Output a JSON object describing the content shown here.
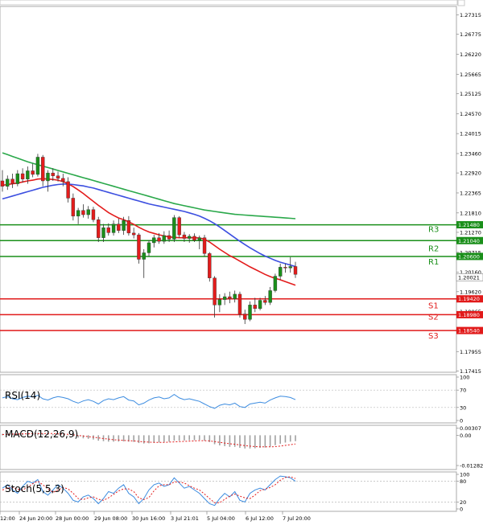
{
  "chart_data": [
    {
      "type": "candlestick",
      "panel": "price",
      "instrument_note": "",
      "price_axis_labels": [
        "1.27315",
        "1.26775",
        "1.26220",
        "1.25665",
        "1.25125",
        "1.24570",
        "1.24015",
        "1.23460",
        "1.22920",
        "1.22365",
        "1.21810",
        "1.21270",
        "1.20715",
        "1.20160",
        "1.19620",
        "1.19065",
        "1.18525",
        "1.17955",
        "1.17415"
      ],
      "ylim": [
        1.1738,
        1.2755
      ],
      "current_price": "1.20021",
      "levels": [
        {
          "name": "R3",
          "value": 1.2148,
          "label": "1.21480",
          "color": "#1a8f1a"
        },
        {
          "name": "R2",
          "value": 1.2104,
          "label": "1.21040",
          "color": "#1a8f1a"
        },
        {
          "name": "R1",
          "value": 1.206,
          "label": "1.20600",
          "color": "#1a8f1a"
        },
        {
          "name": "S1",
          "value": 1.1942,
          "label": "1.19420",
          "color": "#e11a1a"
        },
        {
          "name": "S2",
          "value": 1.1898,
          "label": "1.18980",
          "color": "#e11a1a"
        },
        {
          "name": "S3",
          "value": 1.1854,
          "label": "1.18540",
          "color": "#e11a1a"
        }
      ],
      "level_tags": [
        "R3",
        "R2",
        "R1",
        "S1",
        "S2",
        "S3"
      ],
      "time_labels": [
        "12:00",
        "24 Jun 20:00",
        "28 Jun 00:00",
        "29 Jun 08:00",
        "30 Jun 16:00",
        "3 Jul 21:01",
        "5 Jul 04:00",
        "6 Jul 12:00",
        "7 Jul 20:00"
      ],
      "candles": [
        {
          "o": 1.227,
          "h": 1.23,
          "l": 1.224,
          "c": 1.2255
        },
        {
          "o": 1.2255,
          "h": 1.2285,
          "l": 1.2245,
          "c": 1.2275
        },
        {
          "o": 1.2275,
          "h": 1.229,
          "l": 1.225,
          "c": 1.2262
        },
        {
          "o": 1.2262,
          "h": 1.23,
          "l": 1.2255,
          "c": 1.229
        },
        {
          "o": 1.229,
          "h": 1.2305,
          "l": 1.2265,
          "c": 1.2275
        },
        {
          "o": 1.2275,
          "h": 1.231,
          "l": 1.2262,
          "c": 1.2298
        },
        {
          "o": 1.2298,
          "h": 1.2318,
          "l": 1.228,
          "c": 1.2288
        },
        {
          "o": 1.2288,
          "h": 1.2345,
          "l": 1.2282,
          "c": 1.2336
        },
        {
          "o": 1.2336,
          "h": 1.2342,
          "l": 1.2255,
          "c": 1.227
        },
        {
          "o": 1.227,
          "h": 1.23,
          "l": 1.224,
          "c": 1.2292
        },
        {
          "o": 1.2292,
          "h": 1.2305,
          "l": 1.227,
          "c": 1.2284
        },
        {
          "o": 1.2284,
          "h": 1.2296,
          "l": 1.2268,
          "c": 1.2277
        },
        {
          "o": 1.2277,
          "h": 1.229,
          "l": 1.2255,
          "c": 1.2268
        },
        {
          "o": 1.2268,
          "h": 1.228,
          "l": 1.221,
          "c": 1.2222
        },
        {
          "o": 1.2222,
          "h": 1.2235,
          "l": 1.216,
          "c": 1.2172
        },
        {
          "o": 1.2172,
          "h": 1.2195,
          "l": 1.215,
          "c": 1.2188
        },
        {
          "o": 1.2188,
          "h": 1.2205,
          "l": 1.2168,
          "c": 1.2176
        },
        {
          "o": 1.2176,
          "h": 1.22,
          "l": 1.2165,
          "c": 1.219
        },
        {
          "o": 1.219,
          "h": 1.2198,
          "l": 1.2155,
          "c": 1.2162
        },
        {
          "o": 1.2162,
          "h": 1.217,
          "l": 1.21,
          "c": 1.2112
        },
        {
          "o": 1.2112,
          "h": 1.215,
          "l": 1.21,
          "c": 1.214
        },
        {
          "o": 1.214,
          "h": 1.2152,
          "l": 1.2118,
          "c": 1.2126
        },
        {
          "o": 1.2126,
          "h": 1.216,
          "l": 1.2118,
          "c": 1.215
        },
        {
          "o": 1.215,
          "h": 1.2165,
          "l": 1.2125,
          "c": 1.2132
        },
        {
          "o": 1.2132,
          "h": 1.217,
          "l": 1.212,
          "c": 1.216
        },
        {
          "o": 1.216,
          "h": 1.2172,
          "l": 1.2118,
          "c": 1.2125
        },
        {
          "o": 1.2125,
          "h": 1.214,
          "l": 1.211,
          "c": 1.212
        },
        {
          "o": 1.212,
          "h": 1.2125,
          "l": 1.204,
          "c": 1.2052
        },
        {
          "o": 1.2052,
          "h": 1.208,
          "l": 1.2,
          "c": 1.207
        },
        {
          "o": 1.207,
          "h": 1.2105,
          "l": 1.206,
          "c": 1.2098
        },
        {
          "o": 1.2098,
          "h": 1.212,
          "l": 1.2085,
          "c": 1.2112
        },
        {
          "o": 1.2112,
          "h": 1.2125,
          "l": 1.2095,
          "c": 1.2102
        },
        {
          "o": 1.2102,
          "h": 1.213,
          "l": 1.2095,
          "c": 1.2118
        },
        {
          "o": 1.2118,
          "h": 1.2132,
          "l": 1.21,
          "c": 1.2108
        },
        {
          "o": 1.2108,
          "h": 1.2175,
          "l": 1.21,
          "c": 1.2168
        },
        {
          "o": 1.2168,
          "h": 1.2172,
          "l": 1.2112,
          "c": 1.212
        },
        {
          "o": 1.212,
          "h": 1.2128,
          "l": 1.21,
          "c": 1.211
        },
        {
          "o": 1.211,
          "h": 1.2122,
          "l": 1.2098,
          "c": 1.2116
        },
        {
          "o": 1.2116,
          "h": 1.2124,
          "l": 1.21,
          "c": 1.2105
        },
        {
          "o": 1.2105,
          "h": 1.2118,
          "l": 1.208,
          "c": 1.2112
        },
        {
          "o": 1.2112,
          "h": 1.212,
          "l": 1.206,
          "c": 1.2068
        },
        {
          "o": 1.2068,
          "h": 1.2072,
          "l": 1.199,
          "c": 1.2
        },
        {
          "o": 1.2,
          "h": 1.2005,
          "l": 1.189,
          "c": 1.1925
        },
        {
          "o": 1.1925,
          "h": 1.1955,
          "l": 1.1905,
          "c": 1.194
        },
        {
          "o": 1.194,
          "h": 1.1958,
          "l": 1.1925,
          "c": 1.1948
        },
        {
          "o": 1.1948,
          "h": 1.1962,
          "l": 1.193,
          "c": 1.1942
        },
        {
          "o": 1.1942,
          "h": 1.1965,
          "l": 1.1932,
          "c": 1.1955
        },
        {
          "o": 1.1955,
          "h": 1.1962,
          "l": 1.189,
          "c": 1.19
        },
        {
          "o": 1.19,
          "h": 1.1912,
          "l": 1.1872,
          "c": 1.1885
        },
        {
          "o": 1.1885,
          "h": 1.1935,
          "l": 1.188,
          "c": 1.1925
        },
        {
          "o": 1.1925,
          "h": 1.1945,
          "l": 1.1905,
          "c": 1.1915
        },
        {
          "o": 1.1915,
          "h": 1.1945,
          "l": 1.191,
          "c": 1.1938
        },
        {
          "o": 1.1938,
          "h": 1.195,
          "l": 1.1925,
          "c": 1.1932
        },
        {
          "o": 1.1932,
          "h": 1.1975,
          "l": 1.1925,
          "c": 1.1965
        },
        {
          "o": 1.1965,
          "h": 1.2012,
          "l": 1.196,
          "c": 1.2005
        },
        {
          "o": 1.2005,
          "h": 1.204,
          "l": 1.1995,
          "c": 1.203
        },
        {
          "o": 1.203,
          "h": 1.204,
          "l": 1.2015,
          "c": 1.2028
        },
        {
          "o": 1.2028,
          "h": 1.2058,
          "l": 1.2015,
          "c": 1.2032
        },
        {
          "o": 1.2032,
          "h": 1.2045,
          "l": 1.2,
          "c": 1.201
        }
      ],
      "moving_averages": [
        {
          "name": "MA fast",
          "color": "#e31c1c",
          "values": [
            1.2258,
            1.226,
            1.2262,
            1.2264,
            1.2267,
            1.227,
            1.2272,
            1.2275,
            1.2276,
            1.2275,
            1.2274,
            1.2272,
            1.2268,
            1.2262,
            1.2254,
            1.2245,
            1.2235,
            1.2224,
            1.2213,
            1.2202,
            1.2192,
            1.2182,
            1.2174,
            1.2167,
            1.2162,
            1.2156,
            1.2149,
            1.2141,
            1.2134,
            1.2128,
            1.2124,
            1.212,
            1.2117,
            1.2114,
            1.2113,
            1.2112,
            1.2112,
            1.2112,
            1.2112,
            1.2111,
            1.2108,
            1.21,
            1.209,
            1.208,
            1.2071,
            1.2062,
            1.2055,
            1.2047,
            1.2039,
            1.2031,
            1.2024,
            1.2017,
            1.201,
            1.2004,
            1.1999,
            1.1995,
            1.199,
            1.1985,
            1.198
          ]
        },
        {
          "name": "MA mid",
          "color": "#3c4fe0",
          "values": [
            1.222,
            1.2224,
            1.2228,
            1.2232,
            1.2236,
            1.224,
            1.2244,
            1.2248,
            1.2252,
            1.2255,
            1.2258,
            1.226,
            1.2261,
            1.2261,
            1.226,
            1.2258,
            1.2256,
            1.2253,
            1.225,
            1.2246,
            1.2242,
            1.2238,
            1.2234,
            1.223,
            1.2226,
            1.2222,
            1.2218,
            1.2214,
            1.221,
            1.2206,
            1.2203,
            1.22,
            1.2197,
            1.2194,
            1.2191,
            1.2188,
            1.2185,
            1.2181,
            1.2177,
            1.2172,
            1.2166,
            1.2159,
            1.2151,
            1.2142,
            1.2132,
            1.2122,
            1.2112,
            1.2102,
            1.2093,
            1.2084,
            1.2076,
            1.2068,
            1.2061,
            1.2055,
            1.2049,
            1.2044,
            1.204,
            1.2036,
            1.2032
          ]
        },
        {
          "name": "MA slow",
          "color": "#2aa84a",
          "values": [
            1.2348,
            1.2343,
            1.2338,
            1.2333,
            1.2328,
            1.2323,
            1.2319,
            1.2315,
            1.2311,
            1.2307,
            1.2303,
            1.2299,
            1.2295,
            1.2291,
            1.2287,
            1.2283,
            1.2279,
            1.2275,
            1.2271,
            1.2267,
            1.2263,
            1.2259,
            1.2255,
            1.2251,
            1.2247,
            1.2243,
            1.2239,
            1.2235,
            1.2231,
            1.2227,
            1.2223,
            1.2219,
            1.2215,
            1.2211,
            1.2207,
            1.2204,
            1.2201,
            1.2198,
            1.2195,
            1.2192,
            1.2189,
            1.2187,
            1.2185,
            1.2183,
            1.2181,
            1.2179,
            1.2177,
            1.2176,
            1.2175,
            1.2174,
            1.2173,
            1.2172,
            1.2171,
            1.217,
            1.2169,
            1.2168,
            1.2167,
            1.2166,
            1.2165
          ]
        }
      ]
    },
    {
      "type": "line",
      "panel": "rsi",
      "title": "RSI(14)",
      "ylim": [
        0,
        100
      ],
      "axis_labels": [
        "100",
        "70",
        "30",
        "0"
      ],
      "guide_levels": [
        70,
        30
      ],
      "series": [
        {
          "name": "RSI",
          "color": "#3c8ce0",
          "values": [
            52,
            55,
            50,
            48,
            53,
            56,
            54,
            58,
            50,
            47,
            52,
            55,
            53,
            50,
            44,
            40,
            45,
            48,
            44,
            38,
            46,
            50,
            48,
            52,
            55,
            47,
            45,
            36,
            40,
            47,
            52,
            54,
            50,
            52,
            60,
            52,
            48,
            50,
            47,
            44,
            38,
            32,
            28,
            35,
            38,
            36,
            40,
            32,
            30,
            38,
            40,
            42,
            40,
            47,
            52,
            56,
            55,
            53,
            48
          ]
        }
      ]
    },
    {
      "type": "histogram",
      "panel": "macd",
      "title": "MACD(12,26,9)",
      "ylim": [
        -0.0135,
        0.0032
      ],
      "axis_labels": [
        "0.00307",
        "0.00",
        "-0.012821"
      ],
      "series": [
        {
          "name": "MACD",
          "kind": "bars",
          "color": "#a0a0a0",
          "values": [
            0.0006,
            0.0007,
            0.0007,
            0.0008,
            0.0008,
            0.0009,
            0.0009,
            0.001,
            0.0008,
            0.0006,
            0.0005,
            0.0004,
            0.0002,
            -0.0001,
            -0.0006,
            -0.001,
            -0.0013,
            -0.0015,
            -0.0018,
            -0.0023,
            -0.0025,
            -0.0027,
            -0.0027,
            -0.0027,
            -0.0026,
            -0.0027,
            -0.0028,
            -0.0033,
            -0.0035,
            -0.0034,
            -0.0032,
            -0.003,
            -0.0028,
            -0.0027,
            -0.0023,
            -0.0023,
            -0.0022,
            -0.0021,
            -0.0021,
            -0.002,
            -0.0023,
            -0.0029,
            -0.0038,
            -0.0043,
            -0.0046,
            -0.0049,
            -0.0049,
            -0.0053,
            -0.0056,
            -0.0056,
            -0.0055,
            -0.0053,
            -0.0052,
            -0.0048,
            -0.0042,
            -0.0036,
            -0.0031,
            -0.0027,
            -0.0025
          ]
        },
        {
          "name": "Signal",
          "kind": "dotted",
          "color": "#e31c1c",
          "values": [
            0.0003,
            0.0004,
            0.0005,
            0.0005,
            0.0006,
            0.0006,
            0.0007,
            0.0007,
            0.0007,
            0.0007,
            0.0007,
            0.0006,
            0.0005,
            0.0004,
            0.0002,
            -0.0001,
            -0.0003,
            -0.0006,
            -0.0008,
            -0.0011,
            -0.0014,
            -0.0016,
            -0.0019,
            -0.002,
            -0.0022,
            -0.0023,
            -0.0024,
            -0.0026,
            -0.0028,
            -0.0029,
            -0.003,
            -0.003,
            -0.003,
            -0.0029,
            -0.0028,
            -0.0027,
            -0.0026,
            -0.0025,
            -0.0024,
            -0.0023,
            -0.0023,
            -0.0024,
            -0.0027,
            -0.003,
            -0.0033,
            -0.0036,
            -0.0038,
            -0.0041,
            -0.0044,
            -0.0046,
            -0.0048,
            -0.0049,
            -0.0049,
            -0.0049,
            -0.0048,
            -0.0046,
            -0.0043,
            -0.004,
            -0.0037
          ]
        }
      ]
    },
    {
      "type": "line",
      "panel": "stochastic",
      "title": "Stoch(5,5,3)",
      "ylim": [
        0,
        100
      ],
      "axis_labels": [
        "100",
        "80",
        "20",
        "0"
      ],
      "guide_levels": [
        80,
        20
      ],
      "series": [
        {
          "name": "%K",
          "kind": "solid",
          "color": "#3c8ce0",
          "values": [
            60,
            70,
            55,
            45,
            65,
            80,
            75,
            85,
            50,
            40,
            55,
            70,
            60,
            45,
            25,
            20,
            35,
            40,
            30,
            15,
            30,
            50,
            45,
            60,
            70,
            45,
            35,
            15,
            30,
            55,
            70,
            75,
            65,
            70,
            90,
            75,
            60,
            65,
            55,
            45,
            30,
            15,
            10,
            30,
            45,
            35,
            50,
            25,
            20,
            45,
            55,
            60,
            55,
            70,
            85,
            95,
            93,
            90,
            80
          ]
        },
        {
          "name": "%D",
          "kind": "dotted",
          "color": "#e31c1c",
          "values": [
            55,
            60,
            62,
            57,
            55,
            63,
            73,
            80,
            70,
            58,
            48,
            55,
            62,
            58,
            45,
            30,
            27,
            32,
            35,
            28,
            25,
            32,
            42,
            52,
            58,
            58,
            50,
            32,
            27,
            33,
            52,
            67,
            70,
            70,
            78,
            78,
            75,
            67,
            60,
            55,
            43,
            30,
            18,
            18,
            28,
            37,
            43,
            37,
            32,
            30,
            40,
            53,
            57,
            62,
            70,
            83,
            91,
            93,
            88
          ]
        }
      ]
    }
  ]
}
